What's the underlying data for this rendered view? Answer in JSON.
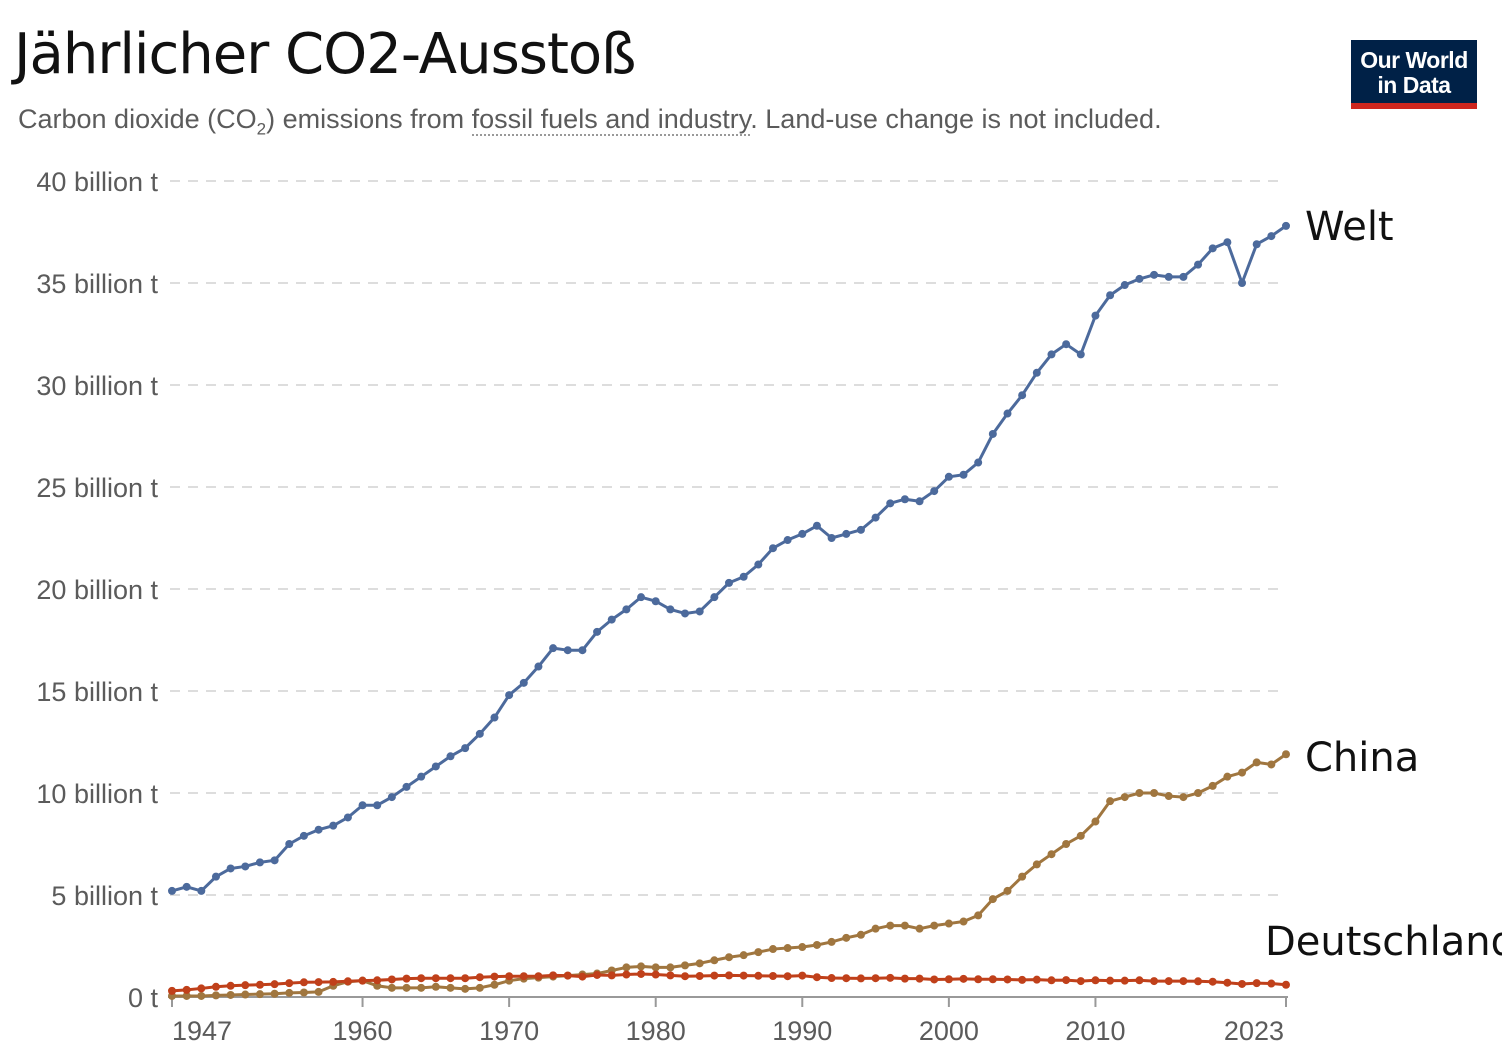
{
  "header": {
    "title": "Jährlicher CO2-Ausstoß",
    "subtitle_before": "Carbon dioxide (CO",
    "subtitle_sub": "2",
    "subtitle_mid": ") emissions from ",
    "subtitle_link": "fossil fuels and industry",
    "subtitle_after": ". Land-use change is not included.",
    "logo_line1": "Our World",
    "logo_line2": "in Data"
  },
  "chart_data": {
    "type": "line",
    "title": "Jährlicher CO2-Ausstoß",
    "xlabel": "",
    "ylabel": "",
    "xlim": [
      1947,
      2023
    ],
    "ylim": [
      0,
      40
    ],
    "y_unit": "billion t",
    "grid": true,
    "legend": "end-labels-right",
    "yticks": [
      {
        "value": 0,
        "label": "0 t"
      },
      {
        "value": 5,
        "label": "5 billion t"
      },
      {
        "value": 10,
        "label": "10 billion t"
      },
      {
        "value": 15,
        "label": "15 billion t"
      },
      {
        "value": 20,
        "label": "20 billion t"
      },
      {
        "value": 25,
        "label": "25 billion t"
      },
      {
        "value": 30,
        "label": "30 billion t"
      },
      {
        "value": 35,
        "label": "35 billion t"
      },
      {
        "value": 40,
        "label": "40 billion t"
      }
    ],
    "xticks": [
      "1947",
      "1960",
      "1970",
      "1980",
      "1990",
      "2000",
      "2010",
      "2023"
    ],
    "x_start": 1947,
    "series": [
      {
        "name": "Welt",
        "color": "#4c6a9c",
        "values": [
          5.2,
          5.4,
          5.2,
          5.9,
          6.3,
          6.4,
          6.6,
          6.7,
          7.5,
          7.9,
          8.2,
          8.4,
          8.8,
          9.4,
          9.4,
          9.8,
          10.3,
          10.8,
          11.3,
          11.8,
          12.2,
          12.9,
          13.7,
          14.8,
          15.4,
          16.2,
          17.1,
          17.0,
          17.0,
          17.9,
          18.5,
          19.0,
          19.6,
          19.4,
          19.0,
          18.8,
          18.9,
          19.6,
          20.3,
          20.6,
          21.2,
          22.0,
          22.4,
          22.7,
          23.1,
          22.5,
          22.7,
          22.9,
          23.5,
          24.2,
          24.4,
          24.3,
          24.8,
          25.5,
          25.6,
          26.2,
          27.6,
          28.6,
          29.5,
          30.6,
          31.5,
          32.0,
          31.5,
          33.4,
          34.4,
          34.9,
          35.2,
          35.4,
          35.3,
          35.3,
          35.9,
          36.7,
          37.0,
          35.0,
          36.9,
          37.3,
          37.8
        ]
      },
      {
        "name": "China",
        "color": "#a0763f",
        "values": [
          0.05,
          0.05,
          0.05,
          0.08,
          0.1,
          0.12,
          0.14,
          0.16,
          0.2,
          0.22,
          0.25,
          0.55,
          0.75,
          0.8,
          0.55,
          0.45,
          0.45,
          0.45,
          0.5,
          0.45,
          0.4,
          0.45,
          0.6,
          0.8,
          0.9,
          0.95,
          1.0,
          1.05,
          1.1,
          1.15,
          1.3,
          1.45,
          1.5,
          1.45,
          1.45,
          1.55,
          1.65,
          1.8,
          1.95,
          2.05,
          2.2,
          2.35,
          2.4,
          2.45,
          2.55,
          2.7,
          2.9,
          3.05,
          3.35,
          3.5,
          3.5,
          3.35,
          3.5,
          3.6,
          3.7,
          4.0,
          4.8,
          5.2,
          5.9,
          6.5,
          7.0,
          7.5,
          7.9,
          8.6,
          9.6,
          9.8,
          10.0,
          10.0,
          9.85,
          9.8,
          10.0,
          10.35,
          10.8,
          11.0,
          11.5,
          11.4,
          11.9
        ]
      },
      {
        "name": "Deutschland",
        "color": "#c0401a",
        "values": [
          0.3,
          0.35,
          0.42,
          0.5,
          0.55,
          0.58,
          0.6,
          0.63,
          0.68,
          0.72,
          0.73,
          0.74,
          0.77,
          0.8,
          0.82,
          0.86,
          0.9,
          0.92,
          0.92,
          0.92,
          0.92,
          0.97,
          1.0,
          1.02,
          1.02,
          1.02,
          1.06,
          1.05,
          1.0,
          1.08,
          1.06,
          1.1,
          1.13,
          1.1,
          1.06,
          1.02,
          1.03,
          1.05,
          1.06,
          1.05,
          1.04,
          1.03,
          1.02,
          1.05,
          0.97,
          0.93,
          0.92,
          0.91,
          0.92,
          0.94,
          0.9,
          0.9,
          0.86,
          0.87,
          0.89,
          0.87,
          0.87,
          0.86,
          0.84,
          0.85,
          0.82,
          0.83,
          0.78,
          0.82,
          0.8,
          0.8,
          0.82,
          0.78,
          0.78,
          0.78,
          0.77,
          0.75,
          0.7,
          0.64,
          0.68,
          0.66,
          0.6
        ]
      }
    ]
  }
}
